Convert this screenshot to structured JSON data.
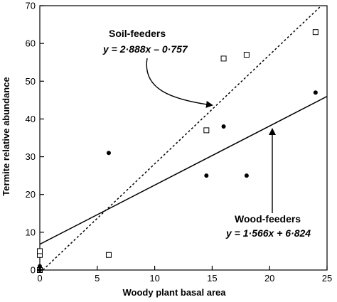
{
  "chart_data": {
    "type": "scatter",
    "title": "",
    "xlabel": "Woody plant basal area",
    "ylabel": "Termite relative abundance",
    "xlim": [
      0,
      25
    ],
    "ylim": [
      0,
      70
    ],
    "xticks": [
      0,
      5,
      10,
      15,
      20,
      25
    ],
    "yticks": [
      0,
      10,
      20,
      30,
      40,
      50,
      60,
      70
    ],
    "grid": false,
    "series": [
      {
        "name": "Soil-feeders",
        "marker": "open-square",
        "color": "#000000",
        "points": [
          [
            0,
            0
          ],
          [
            0,
            4
          ],
          [
            0,
            5
          ],
          [
            6,
            4
          ],
          [
            14.5,
            37
          ],
          [
            16,
            56
          ],
          [
            18,
            57
          ],
          [
            24,
            63
          ]
        ],
        "fit": {
          "slope": 2.888,
          "intercept": -0.757,
          "style": "dotted",
          "equation_label": "y = 2·888x – 0·757"
        }
      },
      {
        "name": "Wood-feeders",
        "marker": "filled-circle",
        "color": "#000000",
        "points": [
          [
            0,
            1
          ],
          [
            0,
            0
          ],
          [
            6,
            31
          ],
          [
            14.5,
            25
          ],
          [
            16,
            38
          ],
          [
            18,
            25
          ],
          [
            24,
            47
          ]
        ],
        "fit": {
          "slope": 1.566,
          "intercept": 6.824,
          "style": "solid",
          "equation_label": "y = 1·566x + 6·824"
        }
      }
    ],
    "annotations": [
      {
        "label": "Soil-feeders",
        "equation": "y = 2·888x – 0·757",
        "arrow_to": [
          14.5,
          42
        ]
      },
      {
        "label": "Wood-feeders",
        "equation": "y = 1·566x + 6·824",
        "arrow_to": [
          20,
          41
        ]
      }
    ]
  }
}
